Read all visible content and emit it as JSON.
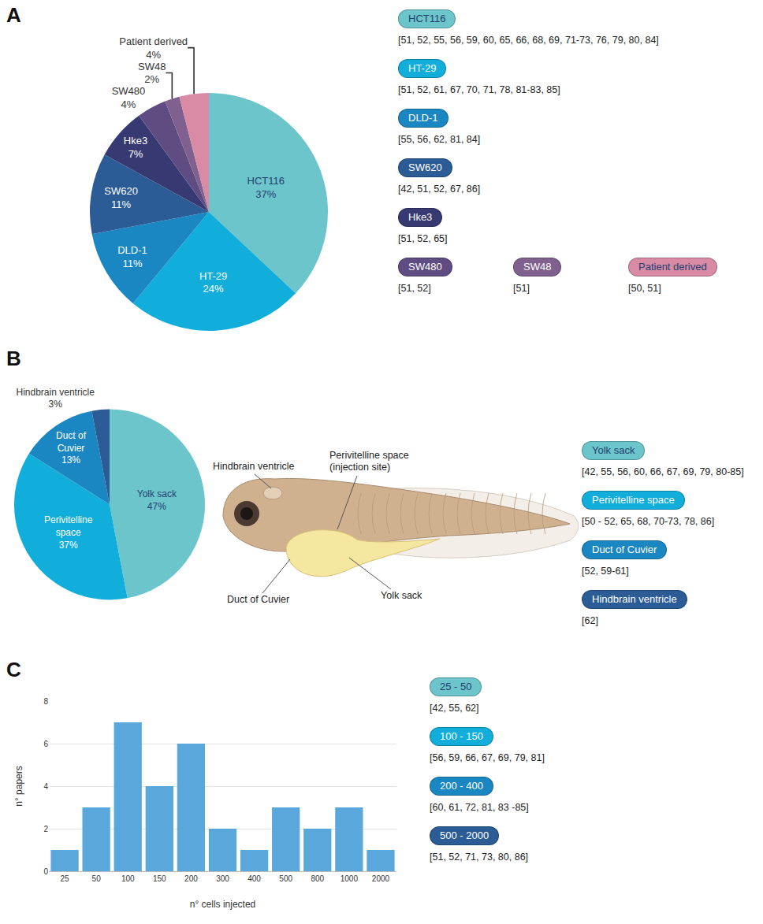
{
  "chart_data": [
    {
      "panel": "A",
      "type": "pie",
      "categories": [
        "HCT116",
        "HT-29",
        "DLD-1",
        "SW620",
        "Hke3",
        "SW480",
        "SW48",
        "Patient derived"
      ],
      "values": [
        37,
        24,
        11,
        11,
        7,
        4,
        2,
        4
      ],
      "value_labels": [
        "37%",
        "24%",
        "11%",
        "11%",
        "7%",
        "4%",
        "2%",
        "4%"
      ],
      "colors": [
        "#6cc5cb",
        "#12aedb",
        "#1b87c2",
        "#2b5c96",
        "#373a72",
        "#5e4c82",
        "#80608f",
        "#d98aa5"
      ],
      "annotations": [
        {
          "label": "HCT116",
          "color": "#6cc5cb",
          "text": "[51, 52, 55, 56, 59, 60, 65, 66, 68, 69, 71-73, 76, 79, 80, 84]"
        },
        {
          "label": "HT-29",
          "color": "#12aedb",
          "text": "[51, 52, 61, 67, 70, 71, 78, 81-83, 85]"
        },
        {
          "label": "DLD-1",
          "color": "#1b87c2",
          "text": "[55, 56, 62, 81, 84]"
        },
        {
          "label": "SW620",
          "color": "#2b5c96",
          "text": "[42, 51, 52, 67, 86]"
        },
        {
          "label": "Hke3",
          "color": "#373a72",
          "text": "[51, 52, 65]"
        },
        {
          "label": "SW480",
          "color": "#5e4c82",
          "text": "[51, 52]"
        },
        {
          "label": "SW48",
          "color": "#80608f",
          "text": "[51]"
        },
        {
          "label": "Patient derived",
          "color": "#d98aa5",
          "text": "[50, 51]"
        }
      ]
    },
    {
      "panel": "B",
      "type": "pie",
      "categories": [
        "Yolk sack",
        "Perivitelline space",
        "Duct of Cuvier",
        "Hindbrain ventricle"
      ],
      "values": [
        47,
        37,
        13,
        3
      ],
      "value_labels": [
        "47%",
        "37%",
        "13%",
        "3%"
      ],
      "colors": [
        "#6cc5cb",
        "#12aedb",
        "#1b87c2",
        "#2b5c96"
      ],
      "diagram_labels": [
        [
          "Hindbrain ventricle"
        ],
        [
          "Perivitelline space",
          "(injection site)"
        ],
        [
          "Duct of Cuvier"
        ],
        [
          "Yolk sack"
        ]
      ],
      "annotations": [
        {
          "label": "Yolk sack",
          "color": "#6cc5cb",
          "text": "[42, 55, 56, 60, 66, 67, 69, 79, 80-85]"
        },
        {
          "label": "Perivitelline space",
          "color": "#12aedb",
          "text": "[50 - 52, 65, 68, 70-73, 78, 86]"
        },
        {
          "label": "Duct of Cuvier",
          "color": "#1b87c2",
          "text": "[52, 59-61]"
        },
        {
          "label": "Hindbrain ventricle",
          "color": "#2b5c96",
          "text": "[62]"
        }
      ]
    },
    {
      "panel": "C",
      "type": "bar",
      "categories": [
        "25",
        "50",
        "100",
        "150",
        "200",
        "300",
        "400",
        "500",
        "800",
        "1000",
        "2000"
      ],
      "values": [
        1,
        3,
        7,
        4,
        6,
        2,
        1,
        3,
        2,
        3,
        1
      ],
      "color": "#5aa7dc",
      "xlabel": "n° cells injected",
      "ylabel": "n° papers",
      "ylim": [
        0,
        8
      ],
      "yticks": [
        0,
        2,
        4,
        6,
        8
      ],
      "grid": true,
      "annotations": [
        {
          "label": "25 - 50",
          "color": "#6cc5cb",
          "text": "[42, 55, 62]"
        },
        {
          "label": "100 - 150",
          "color": "#12aedb",
          "text": "[56, 59, 66, 67, 69, 79, 81]"
        },
        {
          "label": "200 - 400",
          "color": "#1b87c2",
          "text": "[60, 61, 72, 81, 83 -85]"
        },
        {
          "label": "500 - 2000",
          "color": "#2b5c96",
          "text": "[51, 52, 71, 73, 80, 86]"
        }
      ]
    }
  ]
}
